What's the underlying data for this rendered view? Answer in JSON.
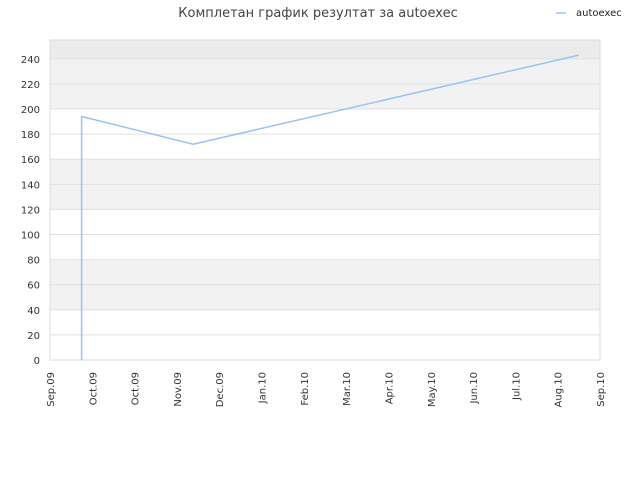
{
  "chart_data": {
    "type": "line",
    "title": "Комплетан график резултат за autoexec",
    "xlabel": "",
    "ylabel": "",
    "x_tick_labels": [
      "Sep.09",
      "Oct.09",
      "Oct.09",
      "Nov.09",
      "Dec.09",
      "Jan.10",
      "Feb.10",
      "Mar.10",
      "Apr.10",
      "May.10",
      "Jun.10",
      "Jul.10",
      "Aug.10",
      "Sep.10"
    ],
    "y_ticks": [
      0,
      20,
      40,
      60,
      80,
      100,
      120,
      140,
      160,
      180,
      200,
      220,
      240
    ],
    "ylim": [
      0,
      255
    ],
    "xlim": [
      "2009-09-01",
      "2010-09-01"
    ],
    "grid": true,
    "legend_position": "top-right",
    "series": [
      {
        "name": "autoexec",
        "color": "#99c4f0",
        "points": [
          {
            "x": "2009-09-22",
            "y": 0
          },
          {
            "x": "2009-09-22",
            "y": 194
          },
          {
            "x": "2009-12-05",
            "y": 172
          },
          {
            "x": "2010-08-18",
            "y": 243
          }
        ]
      }
    ]
  }
}
